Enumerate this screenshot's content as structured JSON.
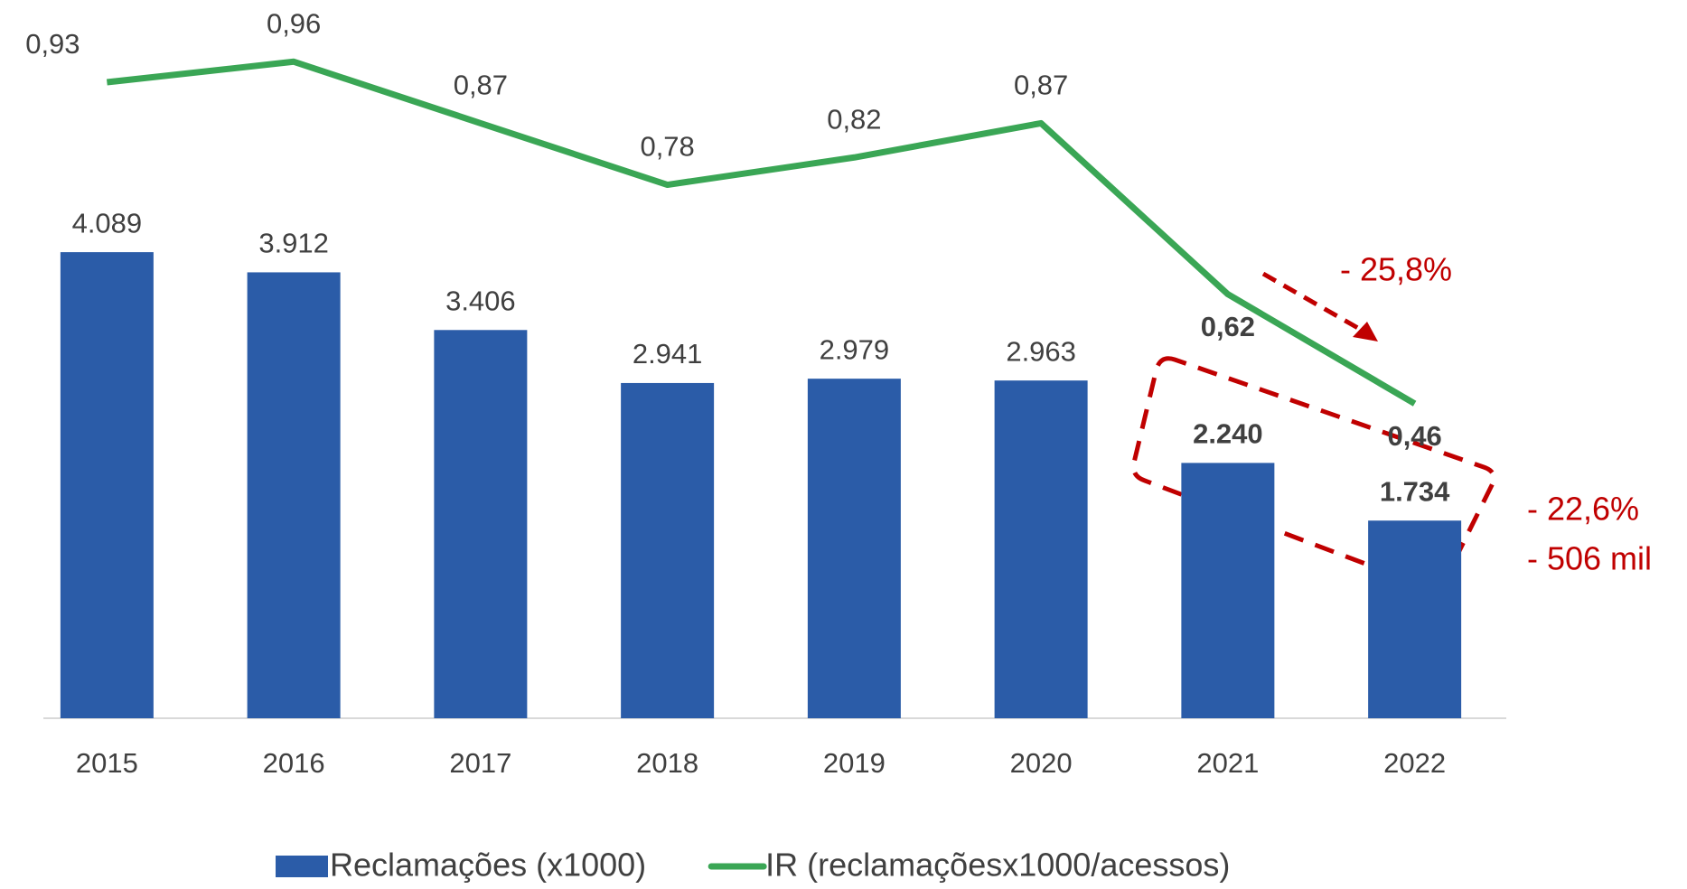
{
  "chart_data": {
    "type": "bar_line",
    "categories": [
      "2015",
      "2016",
      "2017",
      "2018",
      "2019",
      "2020",
      "2021",
      "2022"
    ],
    "series": [
      {
        "name": "Reclamações (x1000)",
        "type": "bar",
        "color": "#2b5ca8",
        "values": [
          4089,
          3912,
          3406,
          2941,
          2979,
          2963,
          2240,
          1734
        ],
        "value_labels": [
          "4.089",
          "3.912",
          "3.406",
          "2.941",
          "2.979",
          "2.963",
          "2.240",
          "1.734"
        ]
      },
      {
        "name": "IR (reclamaçõesx1000/acessos)",
        "type": "line",
        "axis": "y2",
        "color": "#3aa655",
        "values": [
          0.93,
          0.96,
          0.87,
          0.78,
          0.82,
          0.87,
          0.62,
          0.46
        ],
        "value_labels": [
          "0,93",
          "0,96",
          "0,87",
          "0,78",
          "0,82",
          "0,87",
          "0,62",
          "0,46"
        ]
      }
    ],
    "ylim": [
      0,
      6000
    ],
    "y2lim": [
      0,
      1
    ],
    "annotations": [
      "- 25,8%",
      "- 22,6%",
      "- 506 mil"
    ]
  }
}
